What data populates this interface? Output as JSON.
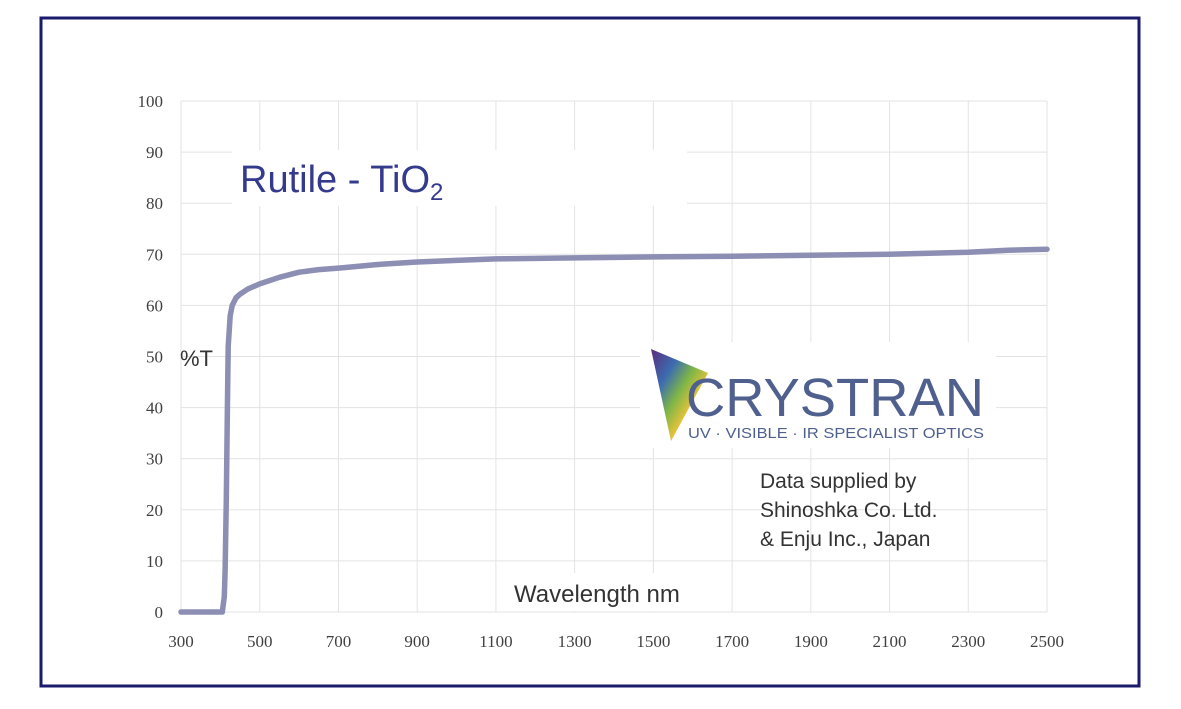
{
  "chart_data": {
    "type": "line",
    "title_main": "Rutile - TiO",
    "title_sub": "2",
    "xlabel": "Wavelength nm",
    "ylabel": "%T",
    "xlim": [
      300,
      2500
    ],
    "ylim": [
      0,
      100
    ],
    "x_ticks": [
      300,
      500,
      700,
      900,
      1100,
      1300,
      1500,
      1700,
      1900,
      2100,
      2300,
      2500
    ],
    "y_ticks": [
      0,
      10,
      20,
      30,
      40,
      50,
      60,
      70,
      80,
      90,
      100
    ],
    "grid": true,
    "line_color": "#8C8EB3",
    "series": [
      {
        "x": [
          300,
          405,
          410,
          412,
          415,
          418,
          420,
          425,
          430,
          440,
          450,
          470,
          500,
          550,
          600,
          650,
          700,
          800,
          900,
          1000,
          1100,
          1300,
          1500,
          1700,
          1900,
          2100,
          2300,
          2400,
          2500
        ],
        "y": [
          0,
          0,
          3,
          8,
          22,
          40,
          52,
          58,
          60,
          61.5,
          62.2,
          63.2,
          64.2,
          65.5,
          66.5,
          67,
          67.3,
          68,
          68.5,
          68.8,
          69.1,
          69.3,
          69.5,
          69.6,
          69.8,
          70,
          70.4,
          70.8,
          71
        ]
      }
    ]
  },
  "logo": {
    "name": "CRYSTRAN",
    "tagline": "UV · VISIBLE · IR SPECIALIST OPTICS",
    "text_color": "#4F5F8E"
  },
  "credit": {
    "line1": "Data supplied by",
    "line2": "Shinoshka Co. Ltd.",
    "line3": "& Enju Inc., Japan"
  },
  "colors": {
    "frame": "#1A1A6E",
    "title": "#343A8C",
    "grid": "#E3E3E3"
  }
}
